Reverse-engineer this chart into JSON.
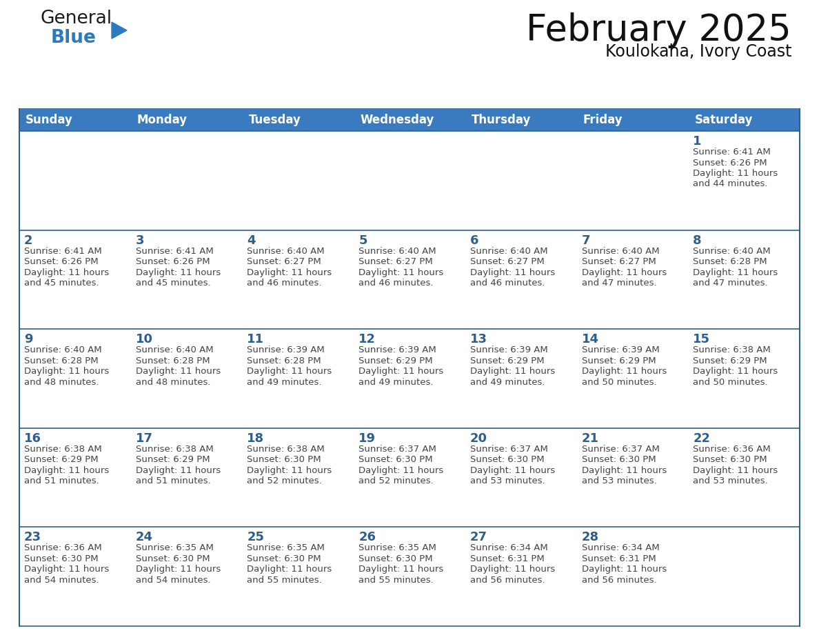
{
  "title": "February 2025",
  "subtitle": "Koulokaha, Ivory Coast",
  "header_color": "#3a7abf",
  "header_text_color": "#ffffff",
  "row_separator_color": "#2e5f8a",
  "day_names": [
    "Sunday",
    "Monday",
    "Tuesday",
    "Wednesday",
    "Thursday",
    "Friday",
    "Saturday"
  ],
  "day_number_color": "#2e5f8a",
  "text_color": "#444444",
  "background_color": "#ffffff",
  "cell_bg_even": "#f5f5f5",
  "cell_bg_odd": "#ffffff",
  "logo_general_color": "#1a1a1a",
  "logo_blue_color": "#2e7abf",
  "title_fontsize": 38,
  "subtitle_fontsize": 17,
  "header_fontsize": 12,
  "day_num_fontsize": 13,
  "cell_fontsize": 9.5,
  "calendar": [
    [
      null,
      null,
      null,
      null,
      null,
      null,
      {
        "day": 1,
        "sunrise": "6:41 AM",
        "sunset": "6:26 PM",
        "daylight": "11 hours and 44 minutes."
      }
    ],
    [
      {
        "day": 2,
        "sunrise": "6:41 AM",
        "sunset": "6:26 PM",
        "daylight": "11 hours and 45 minutes."
      },
      {
        "day": 3,
        "sunrise": "6:41 AM",
        "sunset": "6:26 PM",
        "daylight": "11 hours and 45 minutes."
      },
      {
        "day": 4,
        "sunrise": "6:40 AM",
        "sunset": "6:27 PM",
        "daylight": "11 hours and 46 minutes."
      },
      {
        "day": 5,
        "sunrise": "6:40 AM",
        "sunset": "6:27 PM",
        "daylight": "11 hours and 46 minutes."
      },
      {
        "day": 6,
        "sunrise": "6:40 AM",
        "sunset": "6:27 PM",
        "daylight": "11 hours and 46 minutes."
      },
      {
        "day": 7,
        "sunrise": "6:40 AM",
        "sunset": "6:27 PM",
        "daylight": "11 hours and 47 minutes."
      },
      {
        "day": 8,
        "sunrise": "6:40 AM",
        "sunset": "6:28 PM",
        "daylight": "11 hours and 47 minutes."
      }
    ],
    [
      {
        "day": 9,
        "sunrise": "6:40 AM",
        "sunset": "6:28 PM",
        "daylight": "11 hours and 48 minutes."
      },
      {
        "day": 10,
        "sunrise": "6:40 AM",
        "sunset": "6:28 PM",
        "daylight": "11 hours and 48 minutes."
      },
      {
        "day": 11,
        "sunrise": "6:39 AM",
        "sunset": "6:28 PM",
        "daylight": "11 hours and 49 minutes."
      },
      {
        "day": 12,
        "sunrise": "6:39 AM",
        "sunset": "6:29 PM",
        "daylight": "11 hours and 49 minutes."
      },
      {
        "day": 13,
        "sunrise": "6:39 AM",
        "sunset": "6:29 PM",
        "daylight": "11 hours and 49 minutes."
      },
      {
        "day": 14,
        "sunrise": "6:39 AM",
        "sunset": "6:29 PM",
        "daylight": "11 hours and 50 minutes."
      },
      {
        "day": 15,
        "sunrise": "6:38 AM",
        "sunset": "6:29 PM",
        "daylight": "11 hours and 50 minutes."
      }
    ],
    [
      {
        "day": 16,
        "sunrise": "6:38 AM",
        "sunset": "6:29 PM",
        "daylight": "11 hours and 51 minutes."
      },
      {
        "day": 17,
        "sunrise": "6:38 AM",
        "sunset": "6:29 PM",
        "daylight": "11 hours and 51 minutes."
      },
      {
        "day": 18,
        "sunrise": "6:38 AM",
        "sunset": "6:30 PM",
        "daylight": "11 hours and 52 minutes."
      },
      {
        "day": 19,
        "sunrise": "6:37 AM",
        "sunset": "6:30 PM",
        "daylight": "11 hours and 52 minutes."
      },
      {
        "day": 20,
        "sunrise": "6:37 AM",
        "sunset": "6:30 PM",
        "daylight": "11 hours and 53 minutes."
      },
      {
        "day": 21,
        "sunrise": "6:37 AM",
        "sunset": "6:30 PM",
        "daylight": "11 hours and 53 minutes."
      },
      {
        "day": 22,
        "sunrise": "6:36 AM",
        "sunset": "6:30 PM",
        "daylight": "11 hours and 53 minutes."
      }
    ],
    [
      {
        "day": 23,
        "sunrise": "6:36 AM",
        "sunset": "6:30 PM",
        "daylight": "11 hours and 54 minutes."
      },
      {
        "day": 24,
        "sunrise": "6:35 AM",
        "sunset": "6:30 PM",
        "daylight": "11 hours and 54 minutes."
      },
      {
        "day": 25,
        "sunrise": "6:35 AM",
        "sunset": "6:30 PM",
        "daylight": "11 hours and 55 minutes."
      },
      {
        "day": 26,
        "sunrise": "6:35 AM",
        "sunset": "6:30 PM",
        "daylight": "11 hours and 55 minutes."
      },
      {
        "day": 27,
        "sunrise": "6:34 AM",
        "sunset": "6:31 PM",
        "daylight": "11 hours and 56 minutes."
      },
      {
        "day": 28,
        "sunrise": "6:34 AM",
        "sunset": "6:31 PM",
        "daylight": "11 hours and 56 minutes."
      },
      null
    ]
  ]
}
